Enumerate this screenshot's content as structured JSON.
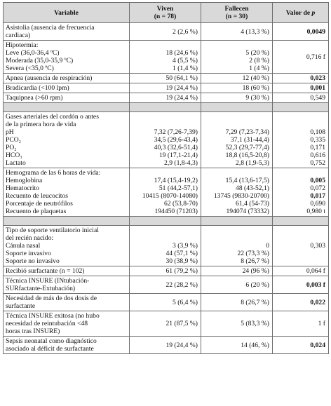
{
  "header": {
    "variable": "Variable",
    "viven": "Viven",
    "viven_n": "(n = 78)",
    "fallecen": "Fallecen",
    "fallecen_n": "(n = 30)",
    "pvalue_prefix": "Valor de ",
    "pvalue_italic": "p"
  },
  "groups": [
    {
      "rows": [
        {
          "label": [
            "Asistolia (ausencia de frecuencia",
            "cardiaca)"
          ],
          "viven": [
            "2 (2,6 %)"
          ],
          "fallecen": [
            "4 (13,3 %)"
          ],
          "p": "0,0049",
          "bold": true,
          "shade": false
        },
        {
          "label": [
            "Hipotermia:",
            "Leve (36,0-36,4 ºC)",
            "Moderada (35,0-35,9 ºC)",
            "Severa (<35,0 ºC)"
          ],
          "viven": [
            "",
            "18 (24,6 %)",
            "4 (5,5 %)",
            "1 (1,4 %)"
          ],
          "fallecen": [
            "",
            "5 (20 %)",
            "2 (8 %)",
            "1 (4 %)"
          ],
          "p": "0,716 f",
          "bold": false,
          "shade": false
        },
        {
          "label": [
            "Apnea (ausencia de respiración)"
          ],
          "viven": [
            "50 (64,1 %)"
          ],
          "fallecen": [
            "12 (40 %)"
          ],
          "p": "0,023",
          "bold": true,
          "shade": false
        },
        {
          "label": [
            "Bradicardia (<100 lpm)"
          ],
          "viven": [
            "19 (24,4 %)"
          ],
          "fallecen": [
            "18 (60 %)"
          ],
          "p": "0,001",
          "bold": true,
          "shade": false
        },
        {
          "label": [
            "Taquipnea (>60 rpm)"
          ],
          "viven": [
            "19 (24,4 %)"
          ],
          "fallecen": [
            "9 (30 %)"
          ],
          "p": "0,549",
          "bold": false,
          "shade": false
        }
      ]
    },
    {
      "rows": [
        {
          "label": [
            "Gases arteriales del cordón o antes",
            "de la primera hora de vida",
            "pH",
            "PCO₂",
            "PO₂",
            "HCO₃",
            "Lactato"
          ],
          "viven": [
            "",
            "",
            "7,32 (7,26-7,39)",
            "34,5 (29,6-43,4)",
            "40,3 (32,6-51,4)",
            "19 (17,1-21,4)",
            "2,9 (1,8-4,3)"
          ],
          "fallecen": [
            "",
            "",
            "7,29 (7,23-7,34)",
            "37,1 (31-44,4)",
            "52,3 (29,7-77,4)",
            "18,8 (16,5-20,8)",
            "2,8 (1,9-5,3)"
          ],
          "p_lines": [
            "",
            "",
            "0,108",
            "0,335",
            "0,171",
            "0,616",
            "0,752"
          ],
          "bold_lines": [
            false,
            false,
            false,
            false,
            false,
            false,
            false
          ]
        },
        {
          "label": [
            "Hemograma de las 6 horas de vida:",
            "Hemoglobina",
            "Hematocrito",
            "Recuento de leucocitos",
            "Porcentaje de neutrófilos",
            "Recuento de plaquetas"
          ],
          "viven": [
            "",
            "17,4 (15,4-19,2)",
            "51 (44,2-57,1)",
            "10415 (8070-14080)",
            "62 (53,8-70)",
            "194450 (71203)"
          ],
          "fallecen": [
            "",
            "15,4 (13,6-17,5)",
            "48 (43-52,1)",
            "13745 (9830-20700)",
            "61,4 (54-73)",
            "194074 (73332)"
          ],
          "p_lines": [
            "",
            "0,005",
            "0,072",
            "0,017",
            "0,690",
            "0,980 t"
          ],
          "bold_lines": [
            false,
            true,
            false,
            true,
            false,
            false
          ]
        }
      ]
    },
    {
      "rows": [
        {
          "label": [
            "Tipo de soporte ventilatorio inicial",
            "del recién nacido:",
            "Cánula nasal",
            "Soporte invasivo",
            "Soporte no invasivo"
          ],
          "viven": [
            "",
            "",
            "3 (3,9 %)",
            "44 (57,1 %)",
            "30 (38,9 %)"
          ],
          "fallecen": [
            "",
            "",
            "0",
            "22 (73,3 %)",
            "8 (26,7 %)"
          ],
          "p": "0,303",
          "bold": false,
          "shade": false
        },
        {
          "label": [
            "Recibió surfactante (n = 102)"
          ],
          "viven": [
            "61 (79,2 %)"
          ],
          "fallecen": [
            "24 (96 %)"
          ],
          "p": "0,064 f",
          "bold": false,
          "shade": false
        },
        {
          "label": [
            "Técnica INSURE (INtubación-",
            "SURfactante-Extubación)"
          ],
          "viven": [
            "22 (28,2 %)"
          ],
          "fallecen": [
            "6 (20 %)"
          ],
          "p": "0,003 f",
          "bold": true,
          "shade": false
        },
        {
          "label": [
            "Necesidad de más de dos dosis de",
            "surfactante"
          ],
          "viven": [
            "5 (6,4 %)"
          ],
          "fallecen": [
            "8 (26,7 %)"
          ],
          "p": "0,022",
          "bold": true,
          "shade": false
        },
        {
          "label": [
            "Técnica INSURE exitosa (no hubo",
            "necesidad de reintubación <48",
            "horas tras INSURE)"
          ],
          "viven": [
            "21 (87,5 %)"
          ],
          "fallecen": [
            "5 (83,3 %)"
          ],
          "p": "1 f",
          "bold": false,
          "shade": false
        },
        {
          "label": [
            "Sepsis neonatal como diagnóstico",
            "asociado al déficit de surfactante"
          ],
          "viven": [
            "19 (24,4 %)"
          ],
          "fallecen": [
            "14 (46, %)"
          ],
          "p": "0,024",
          "bold": true,
          "shade": false
        }
      ]
    }
  ]
}
